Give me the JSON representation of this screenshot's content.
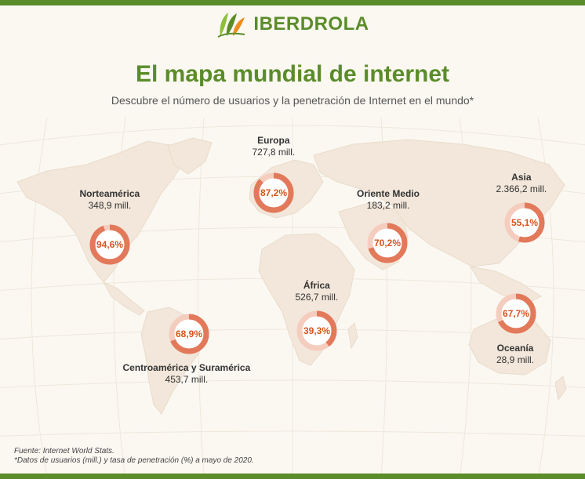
{
  "brand": {
    "name": "IBERDROLA",
    "color": "#5b8c2a"
  },
  "title": "El mapa mundial de internet",
  "subtitle": "Descubre el número de usuarios y la penetración de Internet en el mundo*",
  "colors": {
    "accent": "#e2795a",
    "ring_bg": "#f5cdbf",
    "text_pct": "#d9531e",
    "land": "#f2e7da"
  },
  "regions": [
    {
      "id": "norteamerica",
      "name": "Norteamérica",
      "users": "348,9 mill.",
      "pct_label": "94,6%",
      "pct": 94.6
    },
    {
      "id": "europa",
      "name": "Europa",
      "users": "727,8 mill.",
      "pct_label": "87,2%",
      "pct": 87.2
    },
    {
      "id": "oriente",
      "name": "Oriente Medio",
      "users": "183,2 mill.",
      "pct_label": "70,2%",
      "pct": 70.2
    },
    {
      "id": "asia",
      "name": "Asia",
      "users": "2.366,2 mill.",
      "pct_label": "55,1%",
      "pct": 55.1
    },
    {
      "id": "africa",
      "name": "África",
      "users": "526,7 mill.",
      "pct_label": "39,3%",
      "pct": 39.3
    },
    {
      "id": "oceania",
      "name": "Oceanía",
      "users": "28,9 mill.",
      "pct_label": "67,7%",
      "pct": 67.7
    },
    {
      "id": "latam",
      "name": "Centroamérica y Suramérica",
      "users": "453,7 mill.",
      "pct_label": "68,9%",
      "pct": 68.9
    }
  ],
  "footer": {
    "source": "Fuente: Internet World Stats.",
    "note": "*Datos de usuarios (mill.) y tasa de penetración (%) a mayo de 2020."
  }
}
